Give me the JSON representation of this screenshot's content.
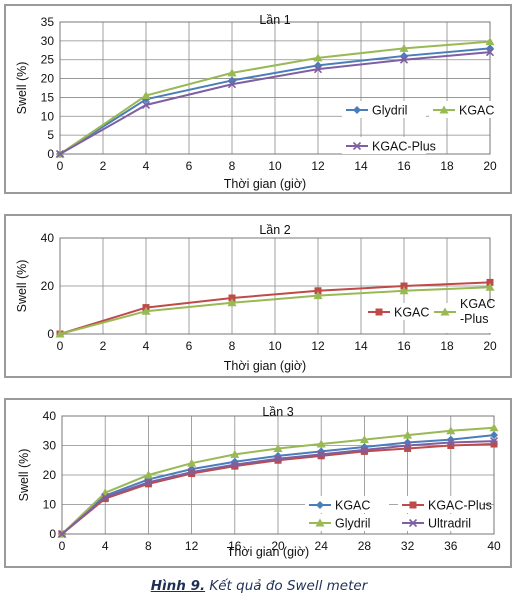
{
  "chart_data": [
    {
      "type": "line",
      "title": "Lần 1",
      "xlabel": "Thời gian (giờ)",
      "ylabel": "Swell (%)",
      "x": [
        0,
        4,
        8,
        12,
        16,
        20
      ],
      "xticks": [
        0,
        2,
        4,
        6,
        8,
        10,
        12,
        14,
        16,
        18,
        20
      ],
      "yticks": [
        0,
        5,
        10,
        15,
        20,
        25,
        30,
        35
      ],
      "xlim": [
        0,
        20
      ],
      "ylim": [
        0,
        35
      ],
      "grid": true,
      "legend": "right",
      "series": [
        {
          "name": "Glydril",
          "color": "#4a7ebb",
          "marker": "diamond",
          "values": [
            0,
            14.5,
            19.5,
            23.5,
            26,
            28
          ]
        },
        {
          "name": "KGAC",
          "color": "#98b954",
          "marker": "triangle",
          "values": [
            0,
            15.5,
            21.5,
            25.5,
            28,
            29.8
          ]
        },
        {
          "name": "KGAC-Plus",
          "color": "#7e5fa2",
          "marker": "x",
          "values": [
            0,
            13,
            18.5,
            22.5,
            25,
            27
          ]
        }
      ]
    },
    {
      "type": "line",
      "title": "Lần 2",
      "xlabel": "Thời gian (giờ)",
      "ylabel": "Swell (%)",
      "x": [
        0,
        4,
        8,
        12,
        16,
        20
      ],
      "xticks": [
        0,
        2,
        4,
        6,
        8,
        10,
        12,
        14,
        16,
        18,
        20
      ],
      "yticks": [
        0,
        20,
        40
      ],
      "xlim": [
        0,
        20
      ],
      "ylim": [
        0,
        40
      ],
      "grid": true,
      "legend": "right",
      "series": [
        {
          "name": "KGAC",
          "color": "#be4b48",
          "marker": "square",
          "values": [
            0,
            11,
            15,
            18,
            20,
            21.5
          ]
        },
        {
          "name": "KGAC-Plus",
          "label_lines": [
            "KGAC",
            "-Plus"
          ],
          "color": "#98b954",
          "marker": "triangle",
          "values": [
            0,
            9.5,
            13,
            16,
            18,
            19.5
          ]
        }
      ]
    },
    {
      "type": "line",
      "title": "Lần 3",
      "xlabel": "Thời gian (giờ)",
      "ylabel": "Swell (%)",
      "x": [
        0,
        4,
        8,
        12,
        16,
        20,
        24,
        28,
        32,
        36,
        40
      ],
      "xticks": [
        0,
        4,
        8,
        12,
        16,
        20,
        24,
        28,
        32,
        36,
        40
      ],
      "yticks": [
        0,
        10,
        20,
        30,
        40
      ],
      "xlim": [
        0,
        40
      ],
      "ylim": [
        0,
        40
      ],
      "grid": true,
      "legend": "bottom-right",
      "series": [
        {
          "name": "KGAC",
          "color": "#4a7ebb",
          "marker": "diamond",
          "values": [
            0,
            13,
            18.5,
            22,
            24.5,
            26.5,
            28,
            29.5,
            31,
            32,
            33.5
          ]
        },
        {
          "name": "KGAC-Plus",
          "color": "#be4b48",
          "marker": "square",
          "values": [
            0,
            12,
            17,
            20.5,
            23,
            25,
            26.5,
            28,
            29,
            30,
            30.5
          ]
        },
        {
          "name": "Glydril",
          "color": "#98b954",
          "marker": "triangle",
          "values": [
            0,
            14,
            20,
            24,
            27,
            29,
            30.5,
            32,
            33.5,
            35,
            36
          ]
        },
        {
          "name": "Ultradril",
          "color": "#7e5fa2",
          "marker": "x",
          "values": [
            0,
            12.5,
            17.5,
            21,
            23.5,
            25.5,
            27,
            28.5,
            30,
            31,
            31.5
          ]
        }
      ]
    }
  ],
  "caption": {
    "figure_label": "Hình 9.",
    "text": "Kết quả đo Swell meter"
  }
}
